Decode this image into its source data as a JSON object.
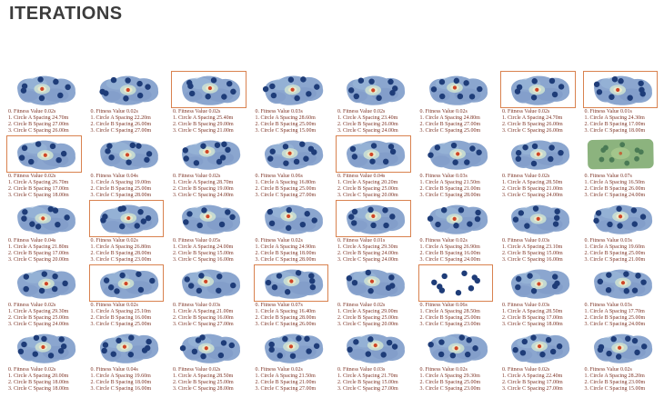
{
  "page": {
    "title": "ITERATIONS"
  },
  "line_labels": {
    "fitness": "0. Fitness Value",
    "circle_a": "1. Circle A Spacing",
    "circle_b": "2. Circle B Spacing",
    "circle_c": "3. Circle C Spacing"
  },
  "colors": {
    "title_text": "#3c3c3c",
    "stats_text": "#7d3426",
    "blob_fill": "#8ba6cf",
    "blob_patch_light": "#9db9da",
    "blob_patch_dark": "#7b96c5",
    "navy_dot": "#1e3c78",
    "attractor_dot": "#cf4526",
    "attractor_halo": "#cfe3d2",
    "highlight_border": "#d9824f",
    "green_cell_fill": "#8cb37e",
    "green_dot": "#4a7a55"
  },
  "chart_data": {
    "type": "table",
    "title": "ITERATIONS",
    "layout": {
      "rows": 5,
      "columns": 8,
      "legend": "none",
      "grid": "off"
    },
    "columns": [
      "Fitness Value",
      "Circle A Spacing",
      "Circle B Spacing",
      "Circle C Spacing"
    ],
    "cells": [
      {
        "fitness": "0.02s",
        "circle_a": "24.70m",
        "circle_b": "27.00m",
        "circle_c": "26.00m",
        "variant": "blob",
        "highlighted": false
      },
      {
        "fitness": "0.02s",
        "circle_a": "22.20m",
        "circle_b": "26.00m",
        "circle_c": "27.00m",
        "variant": "blob",
        "highlighted": false
      },
      {
        "fitness": "0.02s",
        "circle_a": "25.40m",
        "circle_b": "29.00m",
        "circle_c": "21.00m",
        "variant": "blob",
        "highlighted": true
      },
      {
        "fitness": "0.03s",
        "circle_a": "28.60m",
        "circle_b": "25.00m",
        "circle_c": "15.00m",
        "variant": "blob",
        "highlighted": false
      },
      {
        "fitness": "0.02s",
        "circle_a": "23.40m",
        "circle_b": "26.00m",
        "circle_c": "24.00m",
        "variant": "blob",
        "highlighted": false
      },
      {
        "fitness": "0.02s",
        "circle_a": "24.80m",
        "circle_b": "27.00m",
        "circle_c": "25.00m",
        "variant": "blob",
        "highlighted": false
      },
      {
        "fitness": "0.02s",
        "circle_a": "24.70m",
        "circle_b": "26.00m",
        "circle_c": "26.00m",
        "variant": "blob",
        "highlighted": true
      },
      {
        "fitness": "0.01s",
        "circle_a": "24.30m",
        "circle_b": "17.00m",
        "circle_c": "18.00m",
        "variant": "blob",
        "highlighted": true
      },
      {
        "fitness": "0.02s",
        "circle_a": "26.70m",
        "circle_b": "17.00m",
        "circle_c": "18.00m",
        "variant": "blob",
        "highlighted": true
      },
      {
        "fitness": "0.04s",
        "circle_a": "19.00m",
        "circle_b": "25.00m",
        "circle_c": "28.00m",
        "variant": "blob",
        "highlighted": false
      },
      {
        "fitness": "0.02s",
        "circle_a": "28.70m",
        "circle_b": "19.00m",
        "circle_c": "24.00m",
        "variant": "blob",
        "highlighted": false
      },
      {
        "fitness": "0.06s",
        "circle_a": "16.80m",
        "circle_b": "25.00m",
        "circle_c": "27.00m",
        "variant": "blob",
        "highlighted": false
      },
      {
        "fitness": "0.04s",
        "circle_a": "20.20m",
        "circle_b": "25.00m",
        "circle_c": "20.00m",
        "variant": "blob",
        "highlighted": true
      },
      {
        "fitness": "0.03s",
        "circle_a": "21.50m",
        "circle_b": "21.00m",
        "circle_c": "28.00m",
        "variant": "blob",
        "highlighted": false
      },
      {
        "fitness": "0.02s",
        "circle_a": "28.50m",
        "circle_b": "21.00m",
        "circle_c": "24.00m",
        "variant": "blob",
        "highlighted": false
      },
      {
        "fitness": "0.07s",
        "circle_a": "16.50m",
        "circle_b": "26.00m",
        "circle_c": "24.00m",
        "variant": "green",
        "highlighted": false
      },
      {
        "fitness": "0.04s",
        "circle_a": "21.80m",
        "circle_b": "17.00m",
        "circle_c": "20.00m",
        "variant": "blob",
        "highlighted": false
      },
      {
        "fitness": "0.02s",
        "circle_a": "26.80m",
        "circle_b": "28.00m",
        "circle_c": "23.00m",
        "variant": "blob",
        "highlighted": true
      },
      {
        "fitness": "0.05s",
        "circle_a": "24.00m",
        "circle_b": "15.00m",
        "circle_c": "16.00m",
        "variant": "blob",
        "highlighted": false
      },
      {
        "fitness": "0.02s",
        "circle_a": "24.90m",
        "circle_b": "18.00m",
        "circle_c": "28.00m",
        "variant": "blob",
        "highlighted": false
      },
      {
        "fitness": "0.01s",
        "circle_a": "29.30m",
        "circle_b": "24.00m",
        "circle_c": "24.00m",
        "variant": "blob",
        "highlighted": true
      },
      {
        "fitness": "0.02s",
        "circle_a": "26.90m",
        "circle_b": "16.00m",
        "circle_c": "24.00m",
        "variant": "blob",
        "highlighted": false
      },
      {
        "fitness": "0.03s",
        "circle_a": "23.10m",
        "circle_b": "15.00m",
        "circle_c": "16.00m",
        "variant": "blob",
        "highlighted": false
      },
      {
        "fitness": "0.03s",
        "circle_a": "19.60m",
        "circle_b": "25.00m",
        "circle_c": "21.00m",
        "variant": "blob",
        "highlighted": false
      },
      {
        "fitness": "0.02s",
        "circle_a": "29.30m",
        "circle_b": "25.00m",
        "circle_c": "24.00m",
        "variant": "blob",
        "highlighted": false
      },
      {
        "fitness": "0.02s",
        "circle_a": "25.10m",
        "circle_b": "16.00m",
        "circle_c": "25.00m",
        "variant": "blob",
        "highlighted": true
      },
      {
        "fitness": "0.03s",
        "circle_a": "21.00m",
        "circle_b": "16.00m",
        "circle_c": "27.00m",
        "variant": "blob",
        "highlighted": false
      },
      {
        "fitness": "0.07s",
        "circle_a": "16.40m",
        "circle_b": "28.00m",
        "circle_c": "26.00m",
        "variant": "blob",
        "highlighted": true
      },
      {
        "fitness": "0.02s",
        "circle_a": "29.00m",
        "circle_b": "25.00m",
        "circle_c": "20.00m",
        "variant": "blob",
        "highlighted": false
      },
      {
        "fitness": "0.06s",
        "circle_a": "28.50m",
        "circle_b": "25.00m",
        "circle_c": "23.00m",
        "variant": "dots",
        "highlighted": true
      },
      {
        "fitness": "0.03s",
        "circle_a": "28.50m",
        "circle_b": "17.00m",
        "circle_c": "18.00m",
        "variant": "blob",
        "highlighted": false
      },
      {
        "fitness": "0.03s",
        "circle_a": "17.70m",
        "circle_b": "25.00m",
        "circle_c": "24.00m",
        "variant": "blob",
        "highlighted": false
      },
      {
        "fitness": "0.02s",
        "circle_a": "20.00m",
        "circle_b": "18.00m",
        "circle_c": "18.00m",
        "variant": "blob",
        "highlighted": false
      },
      {
        "fitness": "0.04s",
        "circle_a": "19.60m",
        "circle_b": "18.00m",
        "circle_c": "16.00m",
        "variant": "blob",
        "highlighted": false
      },
      {
        "fitness": "0.02s",
        "circle_a": "28.50m",
        "circle_b": "25.00m",
        "circle_c": "28.00m",
        "variant": "blob",
        "highlighted": false
      },
      {
        "fitness": "0.02s",
        "circle_a": "21.50m",
        "circle_b": "21.00m",
        "circle_c": "27.00m",
        "variant": "blob",
        "highlighted": false
      },
      {
        "fitness": "0.03s",
        "circle_a": "21.70m",
        "circle_b": "15.00m",
        "circle_c": "27.00m",
        "variant": "blob",
        "highlighted": false
      },
      {
        "fitness": "0.02s",
        "circle_a": "29.30m",
        "circle_b": "25.00m",
        "circle_c": "23.00m",
        "variant": "blob",
        "highlighted": false
      },
      {
        "fitness": "0.02s",
        "circle_a": "22.40m",
        "circle_b": "17.00m",
        "circle_c": "27.00m",
        "variant": "blob",
        "highlighted": false
      },
      {
        "fitness": "0.02s",
        "circle_a": "28.20m",
        "circle_b": "23.00m",
        "circle_c": "15.00m",
        "variant": "blob",
        "highlighted": false
      }
    ]
  }
}
